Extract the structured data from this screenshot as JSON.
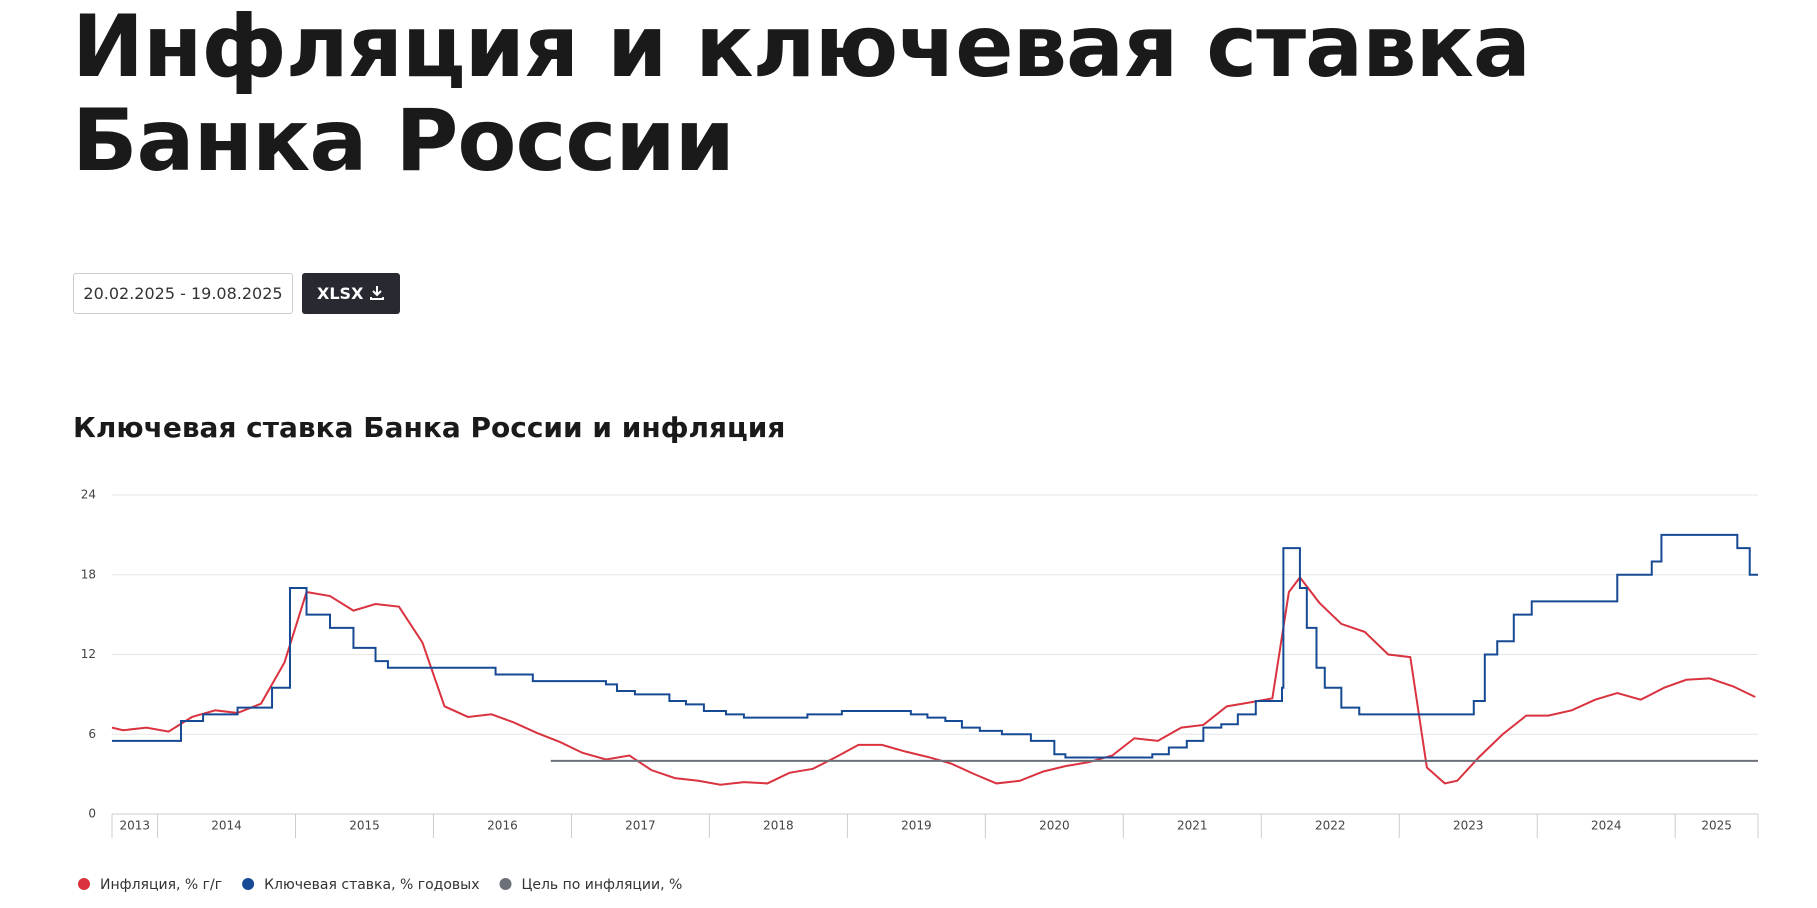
{
  "header": {
    "title": "Инфляция и ключевая ставка Банка России",
    "date_range": "20.02.2025 - 19.08.2025",
    "export_button": "XLSX"
  },
  "chart_data": {
    "type": "line",
    "title": "Ключевая ставка Банка России и инфляция",
    "xlim": [
      2013.67,
      2025.6
    ],
    "xticks": [
      2013,
      2014,
      2015,
      2016,
      2017,
      2018,
      2019,
      2020,
      2021,
      2022,
      2023,
      2024,
      2025
    ],
    "ylim": [
      0,
      24
    ],
    "yticks": [
      0,
      6,
      12,
      18,
      24
    ],
    "grid": true,
    "series": [
      {
        "name": "Инфляция, % г/г",
        "color": "#d9333f",
        "step": false,
        "x": [
          2013.67,
          2013.75,
          2013.92,
          2014.08,
          2014.25,
          2014.42,
          2014.58,
          2014.75,
          2014.92,
          2015.08,
          2015.25,
          2015.42,
          2015.58,
          2015.75,
          2015.92,
          2016.08,
          2016.25,
          2016.42,
          2016.58,
          2016.75,
          2016.92,
          2017.08,
          2017.25,
          2017.42,
          2017.58,
          2017.75,
          2017.92,
          2018.08,
          2018.25,
          2018.42,
          2018.58,
          2018.75,
          2018.92,
          2019.08,
          2019.25,
          2019.42,
          2019.58,
          2019.75,
          2019.92,
          2020.08,
          2020.25,
          2020.42,
          2020.58,
          2020.75,
          2020.92,
          2021.08,
          2021.25,
          2021.42,
          2021.58,
          2021.75,
          2021.92,
          2022.08,
          2022.2,
          2022.28,
          2022.42,
          2022.58,
          2022.75,
          2022.92,
          2023.08,
          2023.2,
          2023.33,
          2023.42,
          2023.58,
          2023.75,
          2023.92,
          2024.08,
          2024.25,
          2024.42,
          2024.58,
          2024.75,
          2024.92,
          2025.08,
          2025.25,
          2025.42,
          2025.58
        ],
        "values": [
          6.5,
          6.3,
          6.5,
          6.2,
          7.3,
          7.8,
          7.6,
          8.3,
          11.4,
          16.7,
          16.4,
          15.3,
          15.8,
          15.6,
          12.9,
          8.1,
          7.3,
          7.5,
          6.9,
          6.1,
          5.4,
          4.6,
          4.1,
          4.4,
          3.3,
          2.7,
          2.5,
          2.2,
          2.4,
          2.3,
          3.1,
          3.4,
          4.3,
          5.2,
          5.2,
          4.7,
          4.3,
          3.8,
          3.0,
          2.3,
          2.5,
          3.2,
          3.6,
          3.9,
          4.4,
          5.7,
          5.5,
          6.5,
          6.7,
          8.1,
          8.4,
          8.7,
          16.7,
          17.8,
          15.9,
          14.3,
          13.7,
          12.0,
          11.8,
          3.5,
          2.3,
          2.5,
          4.3,
          6.0,
          7.4,
          7.4,
          7.8,
          8.6,
          9.1,
          8.6,
          9.5,
          10.1,
          10.2,
          9.6,
          8.8
        ]
      },
      {
        "name": "Ключевая ставка, % годовых",
        "color": "#174a94",
        "step": true,
        "x": [
          2013.67,
          2014.17,
          2014.33,
          2014.58,
          2014.83,
          2014.96,
          2015.08,
          2015.25,
          2015.42,
          2015.58,
          2015.67,
          2016.45,
          2016.72,
          2017.25,
          2017.33,
          2017.46,
          2017.71,
          2017.83,
          2017.96,
          2018.12,
          2018.25,
          2018.71,
          2018.96,
          2019.46,
          2019.58,
          2019.71,
          2019.83,
          2019.96,
          2020.12,
          2020.33,
          2020.5,
          2020.58,
          2021.21,
          2021.33,
          2021.46,
          2021.58,
          2021.71,
          2021.83,
          2021.96,
          2022.15,
          2022.16,
          2022.28,
          2022.33,
          2022.4,
          2022.46,
          2022.58,
          2022.71,
          2023.54,
          2023.62,
          2023.71,
          2023.83,
          2023.96,
          2024.58,
          2024.83,
          2024.9,
          2025.45,
          2025.54,
          2025.6
        ],
        "values": [
          5.5,
          7,
          7.5,
          8,
          9.5,
          17,
          15,
          14,
          12.5,
          11.5,
          11,
          10.5,
          10,
          9.75,
          9.25,
          9,
          8.5,
          8.25,
          7.75,
          7.5,
          7.25,
          7.5,
          7.75,
          7.5,
          7.25,
          7,
          6.5,
          6.25,
          6,
          5.5,
          4.5,
          4.25,
          4.5,
          5,
          5.5,
          6.5,
          6.75,
          7.5,
          8.5,
          9.5,
          20,
          17,
          14,
          11,
          9.5,
          8,
          7.5,
          8.5,
          12,
          13,
          15,
          16,
          18,
          19,
          21,
          20,
          18,
          18
        ]
      },
      {
        "name": "Цель по инфляции, %",
        "color": "#6b7079",
        "step": false,
        "x": [
          2016.85,
          2025.6
        ],
        "values": [
          4,
          4
        ]
      }
    ]
  }
}
